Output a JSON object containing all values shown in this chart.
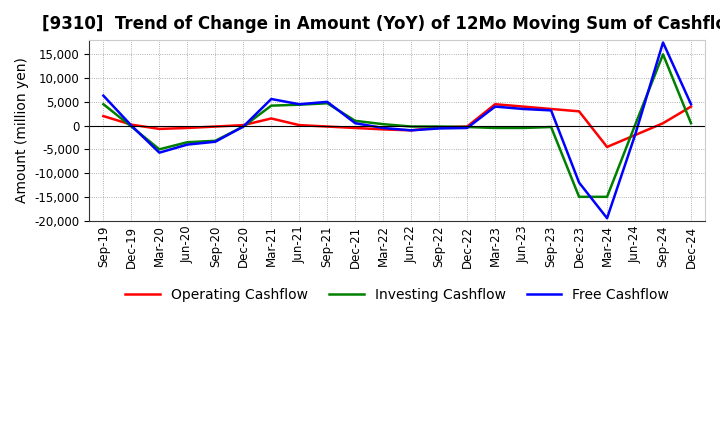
{
  "title": "[9310]  Trend of Change in Amount (YoY) of 12Mo Moving Sum of Cashflows",
  "ylabel": "Amount (million yen)",
  "x_labels": [
    "Sep-19",
    "Dec-19",
    "Mar-20",
    "Jun-20",
    "Sep-20",
    "Dec-20",
    "Mar-21",
    "Jun-21",
    "Sep-21",
    "Dec-21",
    "Mar-22",
    "Jun-22",
    "Sep-22",
    "Dec-22",
    "Mar-23",
    "Jun-23",
    "Sep-23",
    "Dec-23",
    "Mar-24",
    "Jun-24",
    "Sep-24",
    "Dec-24"
  ],
  "operating": [
    2000,
    200,
    -700,
    -500,
    -200,
    100,
    1500,
    100,
    -200,
    -500,
    -800,
    -1000,
    -400,
    -200,
    4500,
    4000,
    3500,
    3000,
    -4500,
    -2000,
    500,
    4000
  ],
  "investing": [
    4500,
    -200,
    -5000,
    -3500,
    -3200,
    -200,
    4200,
    4400,
    4700,
    1000,
    300,
    -200,
    -200,
    -300,
    -500,
    -500,
    -300,
    -15000,
    -15000,
    100,
    15000,
    500
  ],
  "free": [
    6300,
    0,
    -5700,
    -4000,
    -3400,
    -200,
    5600,
    4500,
    5000,
    500,
    -500,
    -1000,
    -600,
    -500,
    4000,
    3500,
    3200,
    -12000,
    -19500,
    -2000,
    17500,
    4500
  ],
  "ylim": [
    -20000,
    18000
  ],
  "yticks": [
    -20000,
    -15000,
    -10000,
    -5000,
    0,
    5000,
    10000,
    15000
  ],
  "legend_labels": [
    "Operating Cashflow",
    "Investing Cashflow",
    "Free Cashflow"
  ],
  "line_colors": [
    "#FF0000",
    "#008000",
    "#0000FF"
  ],
  "background_color": "#FFFFFF",
  "grid_color": "#999999",
  "title_fontsize": 12,
  "label_fontsize": 10,
  "tick_fontsize": 8.5,
  "legend_fontsize": 10
}
